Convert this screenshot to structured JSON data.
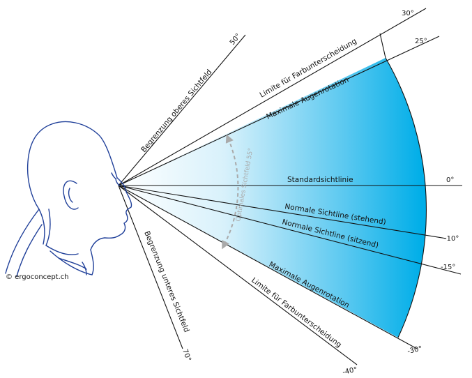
{
  "labels": {
    "upper_limit": "Begrenzung oberes Sichtfeld",
    "lower_limit": "Begrenzung unteres Sichtfeld",
    "color_limit_upper": "Limite für Farbunterscheidung",
    "color_limit_lower": "Limite für Farbunterscheidung",
    "eye_rotation_upper": "Maximale Augenrotation",
    "eye_rotation_lower": "Maximale Augenrotation",
    "standard": "Standardsichtlinie",
    "normal_standing": "Normale Sichtline (stehend)",
    "normal_sitting": "Normale Sichtline (sitzend)",
    "optimal_field": "Optimales Sichtfeld 55°",
    "credit": "© ergoconcept.ch"
  },
  "angles": {
    "a50": "50°",
    "a30": "30°",
    "a25": "25°",
    "a0": "0°",
    "am10": "-10°",
    "am15": "-15°",
    "am30": "-30°",
    "am40": "-40°",
    "am70": "70°"
  },
  "colors": {
    "fan_fill": "#00aee8",
    "head_stroke": "#1f3f99",
    "optimal_arrow": "#aaaaaa"
  }
}
